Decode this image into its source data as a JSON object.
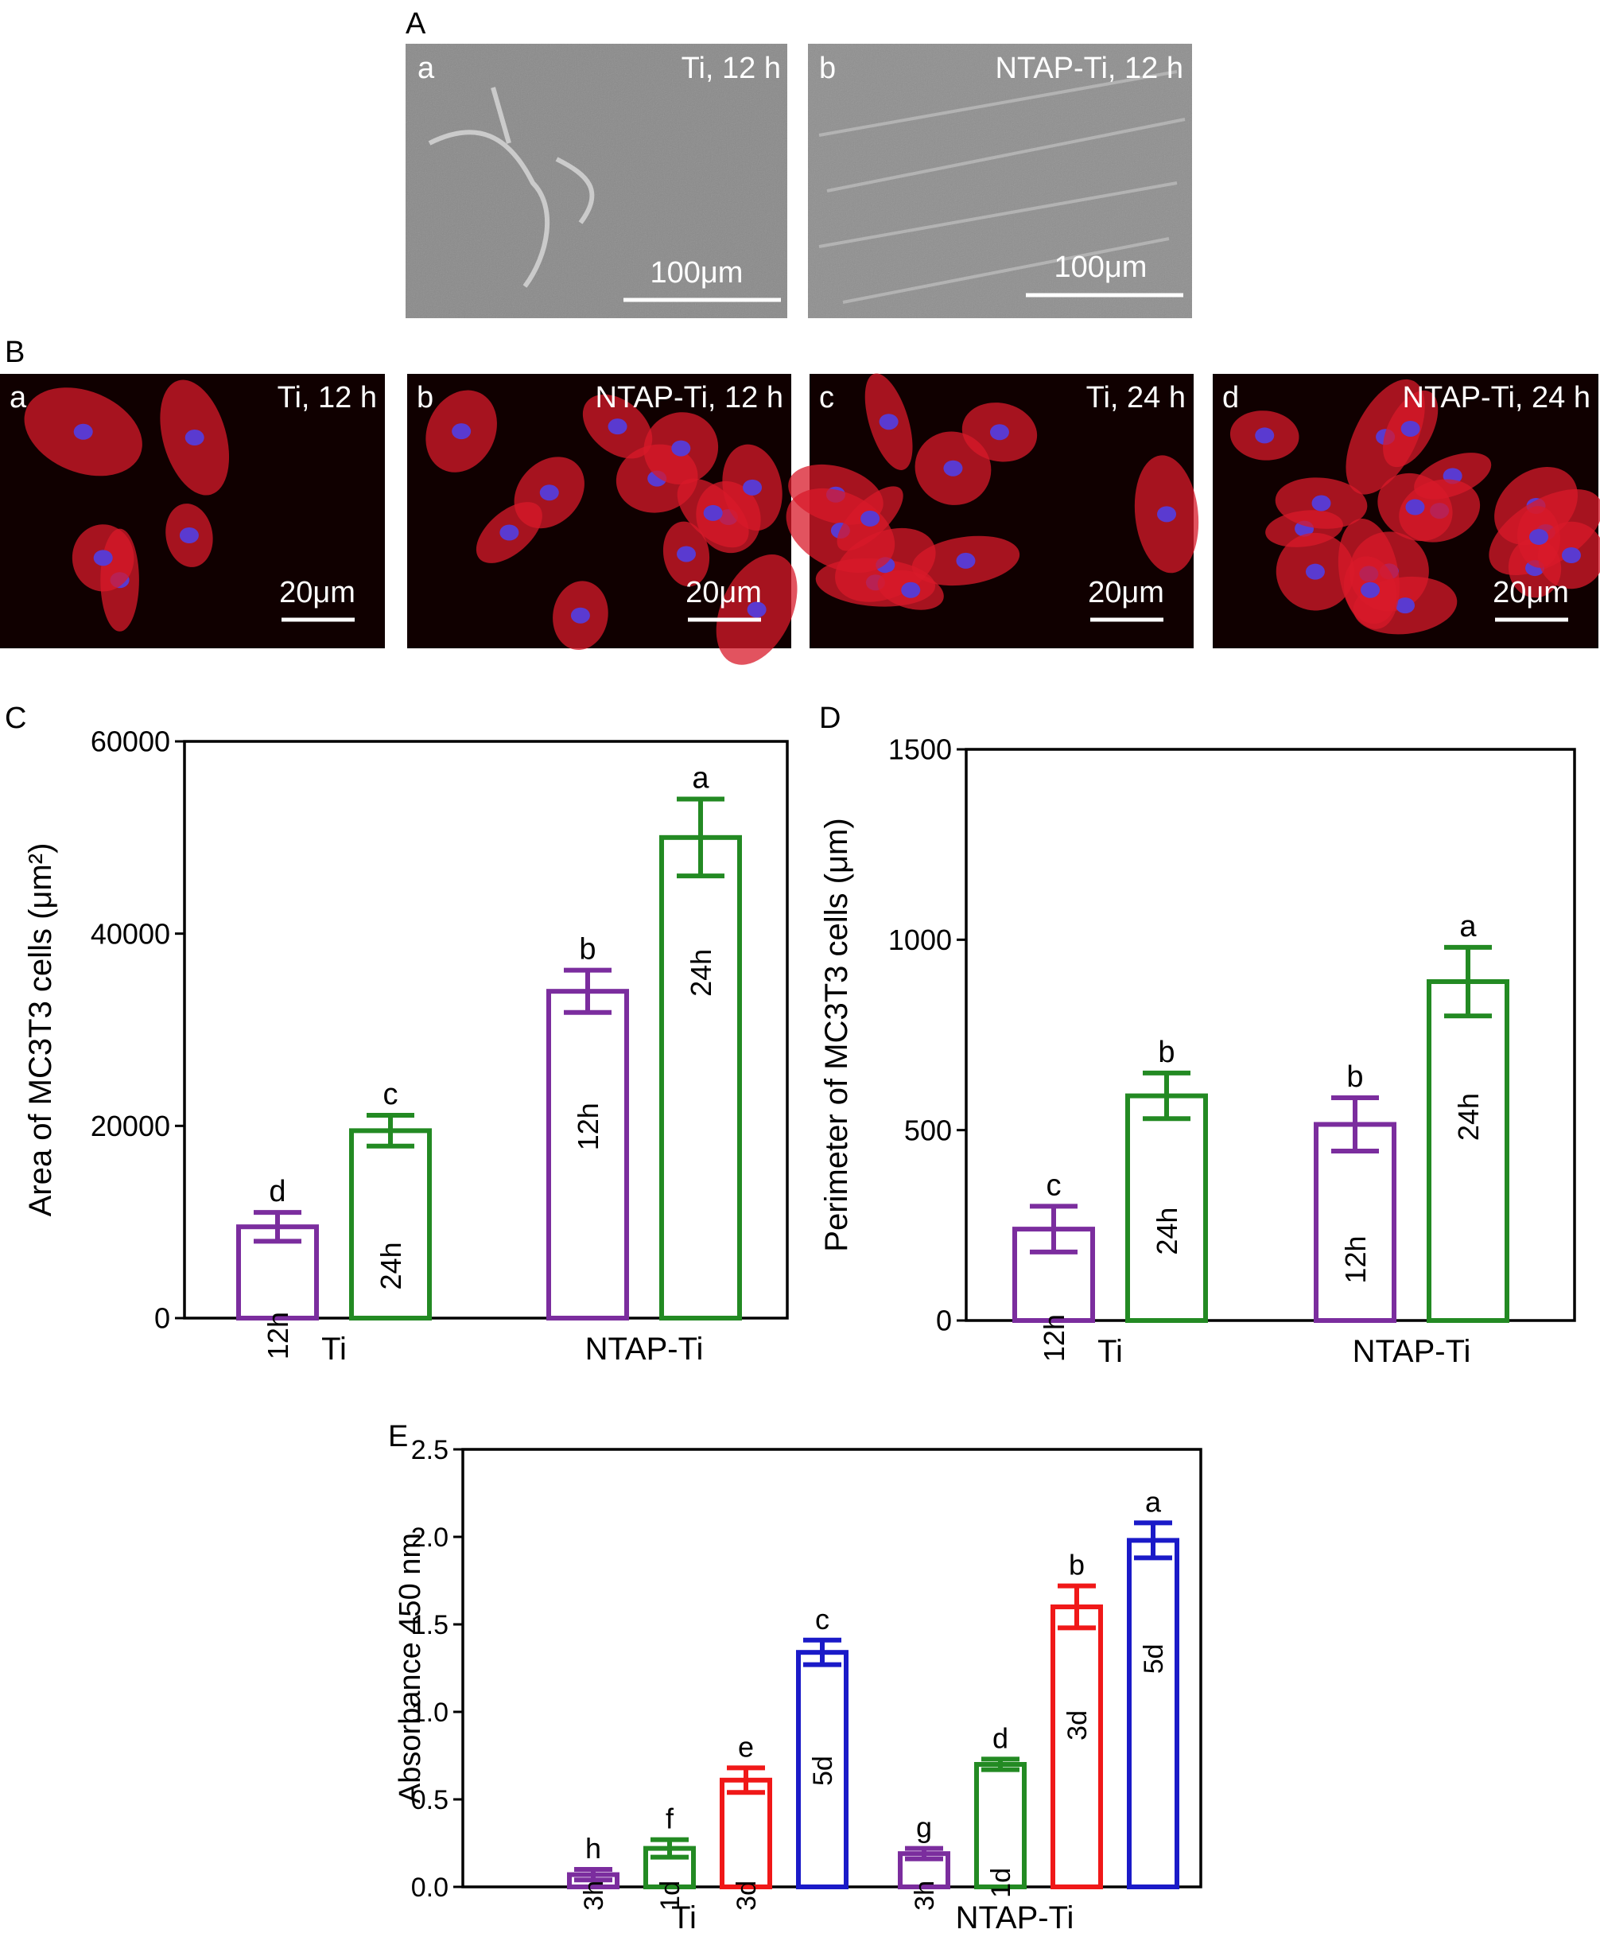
{
  "panels": {
    "A": {
      "label": "A",
      "images": [
        {
          "letter": "a",
          "caption": "Ti, 12 h",
          "scale": "100μm"
        },
        {
          "letter": "b",
          "caption": "NTAP-Ti, 12 h",
          "scale": "100μm"
        }
      ]
    },
    "B": {
      "label": "B",
      "images": [
        {
          "letter": "a",
          "caption": "Ti, 12 h",
          "scale": "20μm"
        },
        {
          "letter": "b",
          "caption": "NTAP-Ti, 12 h",
          "scale": "20μm"
        },
        {
          "letter": "c",
          "caption": "Ti, 24 h",
          "scale": "20μm"
        },
        {
          "letter": "d",
          "caption": "NTAP-Ti, 24 h",
          "scale": "20μm"
        }
      ]
    }
  },
  "colors": {
    "purple": "#7b2d9e",
    "green": "#238a23",
    "red": "#f01818",
    "blue": "#1a1ac8",
    "axis": "#000000",
    "sem_bg": "#8a8a8a",
    "fluor_bg": "#100000",
    "fluor_cell": "#d81a2a",
    "nucleus": "#5a3ad0"
  },
  "chart_data": [
    {
      "panel": "C",
      "type": "bar",
      "ylabel": "Area of MC3T3 cells (μm²)",
      "ylim": [
        0,
        60000
      ],
      "yticks": [
        "0",
        "20000",
        "40000",
        "60000"
      ],
      "ytick_values": [
        0,
        20000,
        40000,
        60000
      ],
      "categories": [
        "Ti",
        "NTAP-Ti"
      ],
      "series": [
        {
          "time": "12h",
          "color": "#7b2d9e",
          "values": [
            9500,
            34000
          ],
          "errors": [
            1500,
            2200
          ],
          "letters": [
            "d",
            "b"
          ]
        },
        {
          "time": "24h",
          "color": "#238a23",
          "values": [
            19500,
            50000
          ],
          "errors": [
            1600,
            4000
          ],
          "letters": [
            "c",
            "a"
          ]
        }
      ]
    },
    {
      "panel": "D",
      "type": "bar",
      "ylabel": "Perimeter of MC3T3 cells (μm)",
      "ylim": [
        0,
        1500
      ],
      "yticks": [
        "0",
        "500",
        "1000",
        "1500"
      ],
      "ytick_values": [
        0,
        500,
        1000,
        1500
      ],
      "categories": [
        "Ti",
        "NTAP-Ti"
      ],
      "series": [
        {
          "time": "12h",
          "color": "#7b2d9e",
          "values": [
            240,
            515
          ],
          "errors": [
            60,
            70
          ],
          "letters": [
            "c",
            "b"
          ]
        },
        {
          "time": "24h",
          "color": "#238a23",
          "values": [
            590,
            890
          ],
          "errors": [
            60,
            90
          ],
          "letters": [
            "b",
            "a"
          ]
        }
      ]
    },
    {
      "panel": "E",
      "type": "bar",
      "ylabel": "Absorbance 450 nm",
      "ylim": [
        0,
        2.5
      ],
      "yticks": [
        "0.0",
        "0.5",
        "1.0",
        "1.5",
        "2.0",
        "2.5"
      ],
      "ytick_values": [
        0,
        0.5,
        1.0,
        1.5,
        2.0,
        2.5
      ],
      "categories": [
        "Ti",
        "NTAP-Ti"
      ],
      "series": [
        {
          "time": "3h",
          "color": "#7b2d9e",
          "values": [
            0.07,
            0.19
          ],
          "errors": [
            0.03,
            0.03
          ],
          "letters": [
            "h",
            "g"
          ]
        },
        {
          "time": "1d",
          "color": "#238a23",
          "values": [
            0.22,
            0.7
          ],
          "errors": [
            0.05,
            0.03
          ],
          "letters": [
            "f",
            "d"
          ]
        },
        {
          "time": "3d",
          "color": "#f01818",
          "values": [
            0.61,
            1.6
          ],
          "errors": [
            0.07,
            0.12
          ],
          "letters": [
            "e",
            "b"
          ]
        },
        {
          "time": "5d",
          "color": "#1a1ac8",
          "values": [
            1.34,
            1.98
          ],
          "errors": [
            0.07,
            0.1
          ],
          "letters": [
            "c",
            "a"
          ]
        }
      ]
    }
  ]
}
